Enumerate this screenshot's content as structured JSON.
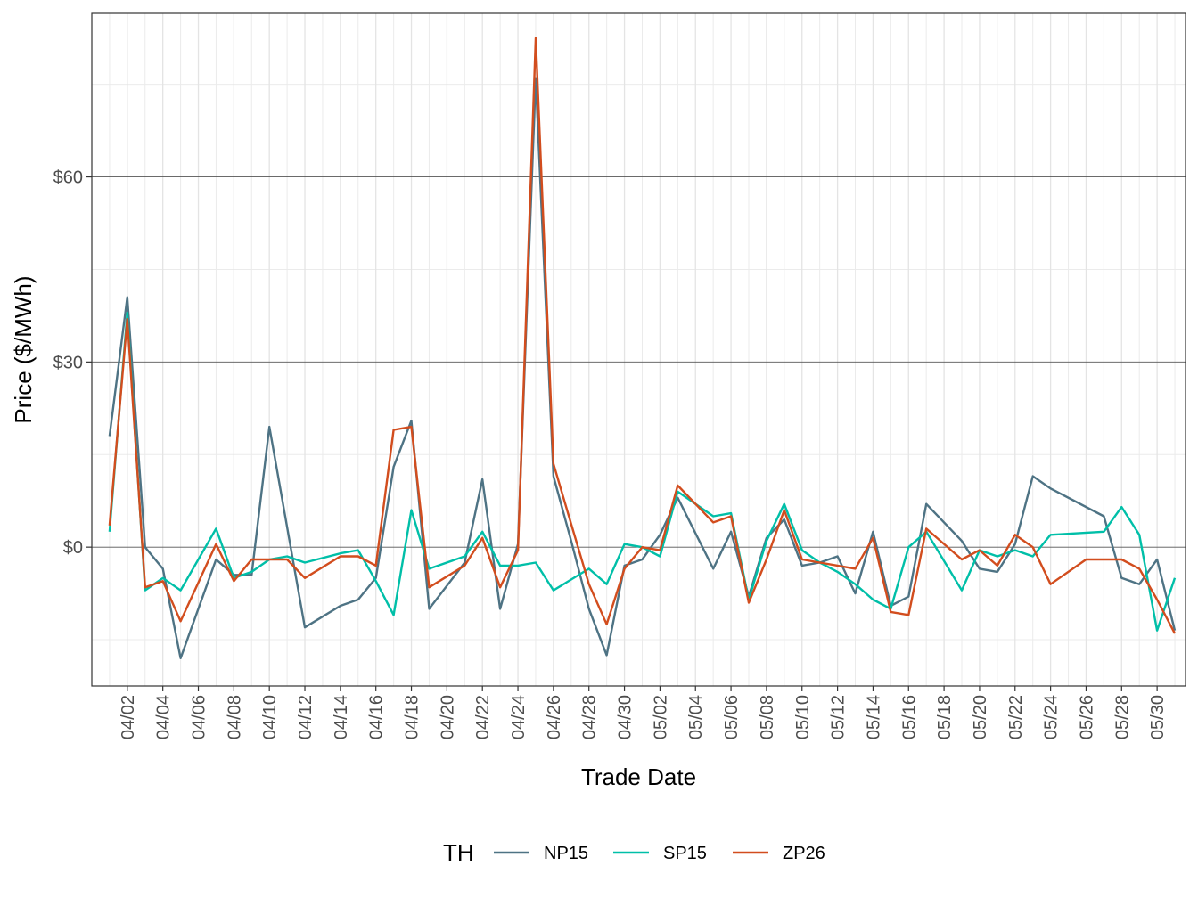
{
  "chart_data": {
    "type": "line",
    "title": "",
    "xlabel": "Trade Date",
    "ylabel": "Price ($/MWh)",
    "ylim": [
      -22.5,
      86.5
    ],
    "y_ticks": [
      0,
      30,
      60
    ],
    "y_tick_labels": [
      "$0",
      "$30",
      "$60"
    ],
    "y_minor_ticks": [
      -15,
      15,
      45,
      75
    ],
    "x_start_day": 1,
    "x_tick_days": [
      2,
      4,
      6,
      8,
      10,
      12,
      14,
      16,
      18,
      20,
      22,
      24,
      26,
      28,
      30,
      32,
      34,
      36,
      38,
      40,
      42,
      44,
      46,
      48,
      50,
      52,
      54,
      56,
      58,
      60
    ],
    "x_tick_labels": [
      "04/02",
      "04/04",
      "04/06",
      "04/08",
      "04/10",
      "04/12",
      "04/14",
      "04/16",
      "04/18",
      "04/20",
      "04/22",
      "04/24",
      "04/26",
      "04/28",
      "04/30",
      "05/02",
      "05/04",
      "05/06",
      "05/08",
      "05/10",
      "05/12",
      "05/14",
      "05/16",
      "05/18",
      "05/20",
      "05/22",
      "05/24",
      "05/26",
      "05/28",
      "05/30"
    ],
    "grid": true,
    "legend": {
      "title": "TH",
      "position": "bottom"
    },
    "series": [
      {
        "name": "NP15",
        "color": "#4E7384",
        "points": [
          [
            1,
            18
          ],
          [
            2,
            40.5
          ],
          [
            3,
            0
          ],
          [
            4,
            -3.5
          ],
          [
            5,
            -18
          ],
          [
            7,
            -2
          ],
          [
            8,
            -4.5
          ],
          [
            9,
            -4.5
          ],
          [
            10,
            19.5
          ],
          [
            12,
            -13
          ],
          [
            14,
            -9.5
          ],
          [
            15,
            -8.5
          ],
          [
            16,
            -5
          ],
          [
            17,
            13
          ],
          [
            18,
            20.5
          ],
          [
            19,
            -10
          ],
          [
            21,
            -2.5
          ],
          [
            22,
            11
          ],
          [
            23,
            -10
          ],
          [
            24,
            0.5
          ],
          [
            25,
            76
          ],
          [
            26,
            11.5
          ],
          [
            27,
            1
          ],
          [
            28,
            -10
          ],
          [
            29,
            -17.5
          ],
          [
            30,
            -3
          ],
          [
            31,
            -2
          ],
          [
            32,
            2
          ],
          [
            33,
            8
          ],
          [
            35,
            -3.5
          ],
          [
            36,
            2.5
          ],
          [
            37,
            -8
          ],
          [
            38,
            1.5
          ],
          [
            39,
            4.5
          ],
          [
            40,
            -3
          ],
          [
            41,
            -2.5
          ],
          [
            42,
            -1.5
          ],
          [
            43,
            -7.5
          ],
          [
            44,
            2.5
          ],
          [
            45,
            -9.5
          ],
          [
            46,
            -8
          ],
          [
            47,
            7
          ],
          [
            49,
            1
          ],
          [
            50,
            -3.5
          ],
          [
            51,
            -4
          ],
          [
            52,
            0.5
          ],
          [
            53,
            11.5
          ],
          [
            54,
            9.5
          ],
          [
            57,
            5
          ],
          [
            58,
            -5
          ],
          [
            59,
            -6
          ],
          [
            60,
            -2
          ],
          [
            61,
            -13.5
          ]
        ]
      },
      {
        "name": "SP15",
        "color": "#00BFA8",
        "points": [
          [
            1,
            2.5
          ],
          [
            2,
            38
          ],
          [
            3,
            -7
          ],
          [
            4,
            -5
          ],
          [
            5,
            -7
          ],
          [
            7,
            3
          ],
          [
            8,
            -5
          ],
          [
            9,
            -4
          ],
          [
            10,
            -2
          ],
          [
            11,
            -1.5
          ],
          [
            12,
            -2.5
          ],
          [
            14,
            -1
          ],
          [
            15,
            -0.5
          ],
          [
            16,
            -5.5
          ],
          [
            17,
            -11
          ],
          [
            18,
            6
          ],
          [
            19,
            -3.5
          ],
          [
            21,
            -1.5
          ],
          [
            22,
            2.5
          ],
          [
            23,
            -3
          ],
          [
            24,
            -3
          ],
          [
            25,
            -2.5
          ],
          [
            26,
            -7
          ],
          [
            28,
            -3.5
          ],
          [
            29,
            -6
          ],
          [
            30,
            0.5
          ],
          [
            31,
            0
          ],
          [
            32,
            -1.5
          ],
          [
            33,
            9
          ],
          [
            35,
            5
          ],
          [
            36,
            5.5
          ],
          [
            37,
            -8.5
          ],
          [
            38,
            1
          ],
          [
            39,
            7
          ],
          [
            40,
            -0.5
          ],
          [
            41,
            -2.5
          ],
          [
            42,
            -4
          ],
          [
            43,
            -6
          ],
          [
            44,
            -8.5
          ],
          [
            45,
            -10
          ],
          [
            46,
            0
          ],
          [
            47,
            2.5
          ],
          [
            49,
            -7
          ],
          [
            50,
            -0.5
          ],
          [
            51,
            -1.5
          ],
          [
            52,
            -0.5
          ],
          [
            53,
            -1.5
          ],
          [
            54,
            2
          ],
          [
            57,
            2.5
          ],
          [
            58,
            6.5
          ],
          [
            59,
            2
          ],
          [
            60,
            -13.5
          ],
          [
            61,
            -5
          ]
        ]
      },
      {
        "name": "ZP26",
        "color": "#D24D1E",
        "points": [
          [
            1,
            3.5
          ],
          [
            2,
            37
          ],
          [
            3,
            -6.5
          ],
          [
            4,
            -5.5
          ],
          [
            5,
            -12
          ],
          [
            7,
            0.5
          ],
          [
            8,
            -5.5
          ],
          [
            9,
            -2
          ],
          [
            10,
            -2
          ],
          [
            11,
            -2
          ],
          [
            12,
            -5
          ],
          [
            14,
            -1.5
          ],
          [
            15,
            -1.5
          ],
          [
            16,
            -3
          ],
          [
            17,
            19
          ],
          [
            18,
            19.5
          ],
          [
            19,
            -6.5
          ],
          [
            21,
            -3
          ],
          [
            22,
            1.5
          ],
          [
            23,
            -6.5
          ],
          [
            24,
            -0.5
          ],
          [
            25,
            82.5
          ],
          [
            26,
            13.5
          ],
          [
            28,
            -6
          ],
          [
            29,
            -12.5
          ],
          [
            30,
            -3.5
          ],
          [
            31,
            0
          ],
          [
            32,
            -0.5
          ],
          [
            33,
            10
          ],
          [
            35,
            4
          ],
          [
            36,
            5
          ],
          [
            37,
            -9
          ],
          [
            38,
            -2
          ],
          [
            39,
            6
          ],
          [
            40,
            -2
          ],
          [
            41,
            -2.5
          ],
          [
            42,
            -3
          ],
          [
            43,
            -3.5
          ],
          [
            44,
            1.5
          ],
          [
            45,
            -10.5
          ],
          [
            46,
            -11
          ],
          [
            47,
            3
          ],
          [
            49,
            -2
          ],
          [
            50,
            -0.5
          ],
          [
            51,
            -3
          ],
          [
            52,
            2
          ],
          [
            53,
            0
          ],
          [
            54,
            -6
          ],
          [
            56,
            -2
          ],
          [
            57,
            -2
          ],
          [
            58,
            -2
          ],
          [
            59,
            -3.5
          ],
          [
            60,
            -8.5
          ],
          [
            61,
            -14
          ]
        ]
      }
    ]
  }
}
